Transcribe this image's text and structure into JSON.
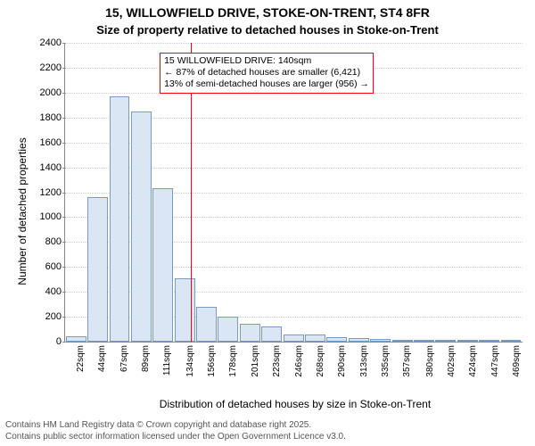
{
  "title_line1": "15, WILLOWFIELD DRIVE, STOKE-ON-TRENT, ST4 8FR",
  "title_line2": "Size of property relative to detached houses in Stoke-on-Trent",
  "y_label": "Number of detached properties",
  "x_label": "Distribution of detached houses by size in Stoke-on-Trent",
  "footer_line1": "Contains HM Land Registry data © Crown copyright and database right 2025.",
  "footer_line2": "Contains public sector information licensed under the Open Government Licence v3.0.",
  "annotation": {
    "line1": "15 WILLOWFIELD DRIVE: 140sqm",
    "line2": "← 87% of detached houses are smaller (6,421)",
    "line3": "13% of semi-detached houses are larger (956) →",
    "ref_x_value": 140
  },
  "chart": {
    "type": "histogram",
    "xmin": 11,
    "xmax": 480,
    "xtick_labels": [
      "22sqm",
      "44sqm",
      "67sqm",
      "89sqm",
      "111sqm",
      "134sqm",
      "156sqm",
      "178sqm",
      "201sqm",
      "223sqm",
      "246sqm",
      "268sqm",
      "290sqm",
      "313sqm",
      "335sqm",
      "357sqm",
      "380sqm",
      "402sqm",
      "424sqm",
      "447sqm",
      "469sqm"
    ],
    "xtick_values": [
      22,
      44,
      67,
      89,
      111,
      134,
      156,
      178,
      201,
      223,
      246,
      268,
      290,
      313,
      335,
      357,
      380,
      402,
      424,
      447,
      469
    ],
    "ymin": 0,
    "ymax": 2400,
    "ytick_step": 200,
    "yticks": [
      0,
      200,
      400,
      600,
      800,
      1000,
      1200,
      1400,
      1600,
      1800,
      2000,
      2200,
      2400
    ],
    "bar_start": 11,
    "bar_width_value": 22.3,
    "gap_ratio": 0.06,
    "values": [
      40,
      1160,
      1970,
      1850,
      1230,
      510,
      280,
      200,
      140,
      120,
      60,
      55,
      35,
      30,
      25,
      12,
      10,
      8,
      6,
      4,
      2
    ],
    "bar_fill": "#dbe6f4",
    "bar_stroke": "#7a9bc2",
    "grid_color": "#cccccc",
    "axis_color": "#888888",
    "ref_color": "#ff0000",
    "background": "#ffffff",
    "title_fontsize": 14,
    "subtitle_fontsize": 13,
    "axis_label_fontsize": 12,
    "tick_fontsize": 11,
    "anno_fontsize": 10.5,
    "anno_left_value": 108,
    "anno_top_value": 2320
  }
}
